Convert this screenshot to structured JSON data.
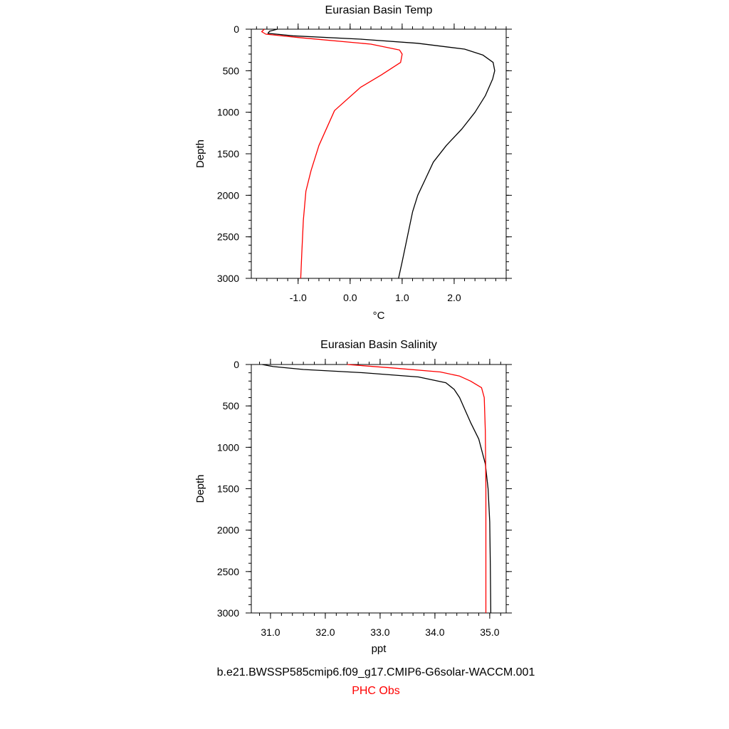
{
  "chart_data": [
    {
      "type": "line",
      "title": "Eurasian Basin Temp",
      "xlabel": "°C",
      "ylabel": "Depth",
      "xlim": [
        -1.9,
        3.0
      ],
      "ylim": [
        3000,
        0
      ],
      "x_ticks": [
        -1.0,
        0.0,
        1.0,
        2.0
      ],
      "x_tick_labels": [
        "-1.0",
        "0.0",
        "1.0",
        "2.0"
      ],
      "y_ticks": [
        0,
        500,
        1000,
        1500,
        2000,
        2500,
        3000
      ],
      "y_tick_labels": [
        "0",
        "500",
        "1000",
        "1500",
        "2000",
        "2500",
        "3000"
      ],
      "grid": false,
      "series": [
        {
          "name": "b.e21.BWSSP585cmip6.f09_g17.CMIP6-G6solar-WACCM.001",
          "color": "#000000",
          "x": [
            -1.4,
            -1.55,
            -1.58,
            -1.1,
            0.2,
            1.3,
            2.2,
            2.55,
            2.75,
            2.78,
            2.74,
            2.6,
            2.4,
            2.15,
            1.85,
            1.6,
            1.45,
            1.3,
            1.2,
            1.1,
            1.0,
            0.93
          ],
          "y": [
            0,
            25,
            50,
            80,
            120,
            170,
            240,
            310,
            400,
            500,
            600,
            800,
            1000,
            1200,
            1400,
            1600,
            1800,
            2000,
            2200,
            2500,
            2800,
            3000
          ]
        },
        {
          "name": "PHC Obs",
          "color": "#ff0000",
          "x": [
            -1.65,
            -1.7,
            -1.62,
            -1.0,
            0.4,
            0.95,
            1.0,
            0.97,
            0.6,
            0.2,
            -0.3,
            -0.6,
            -0.75,
            -0.85,
            -0.9,
            -0.93,
            -0.95
          ],
          "y": [
            0,
            30,
            60,
            100,
            180,
            250,
            300,
            400,
            550,
            700,
            980,
            1400,
            1700,
            1950,
            2300,
            2700,
            3000
          ]
        }
      ]
    },
    {
      "type": "line",
      "title": "Eurasian Basin Salinity",
      "xlabel": "ppt",
      "ylabel": "Depth",
      "xlim": [
        30.65,
        35.3
      ],
      "ylim": [
        3000,
        0
      ],
      "x_ticks": [
        31.0,
        32.0,
        33.0,
        34.0,
        35.0
      ],
      "x_tick_labels": [
        "31.0",
        "32.0",
        "33.0",
        "34.0",
        "35.0"
      ],
      "y_ticks": [
        0,
        500,
        1000,
        1500,
        2000,
        2500,
        3000
      ],
      "y_tick_labels": [
        "0",
        "500",
        "1000",
        "1500",
        "2000",
        "2500",
        "3000"
      ],
      "grid": false,
      "series": [
        {
          "name": "b.e21.BWSSP585cmip6.f09_g17.CMIP6-G6solar-WACCM.001",
          "color": "#000000",
          "x": [
            30.85,
            31.05,
            31.6,
            32.7,
            33.7,
            34.2,
            34.35,
            34.45,
            34.55,
            34.65,
            34.8,
            34.92,
            34.97,
            35.0,
            35.01,
            35.02
          ],
          "y": [
            0,
            25,
            60,
            100,
            150,
            220,
            300,
            400,
            550,
            700,
            900,
            1200,
            1500,
            1900,
            2400,
            3000
          ]
        },
        {
          "name": "PHC Obs",
          "color": "#ff0000",
          "x": [
            32.4,
            33.2,
            34.1,
            34.45,
            34.65,
            34.85,
            34.9,
            34.92,
            34.93,
            34.93,
            34.93
          ],
          "y": [
            0,
            40,
            90,
            140,
            200,
            280,
            400,
            800,
            1500,
            2300,
            3000
          ]
        }
      ]
    }
  ],
  "captions": {
    "model_run": "b.e21.BWSSP585cmip6.f09_g17.CMIP6-G6solar-WACCM.001",
    "obs": "PHC Obs"
  }
}
